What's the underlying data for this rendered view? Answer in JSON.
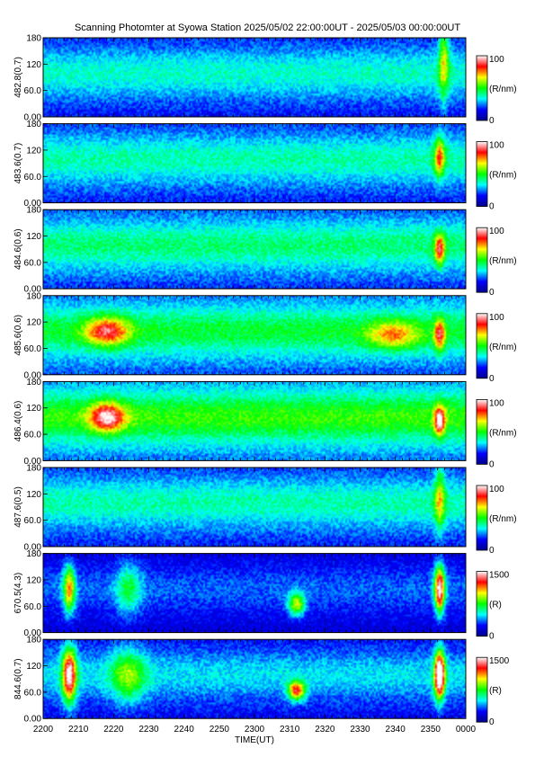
{
  "title": "Scanning Photomter at Syowa Station 2025/05/02 22:00:00UT - 2025/05/03 00:00:00UT",
  "chart_data": {
    "type": "heatmap",
    "xlabel": "TIME(UT)",
    "x_ticks": [
      "2200",
      "2210",
      "2220",
      "2230",
      "2240",
      "2250",
      "2300",
      "2310",
      "2320",
      "2330",
      "2340",
      "2350",
      "0000"
    ],
    "xlim": [
      "2200",
      "0000"
    ],
    "y_ticks": [
      "0.00",
      "60.0",
      "120",
      "180"
    ],
    "ylim": [
      0,
      180
    ],
    "colormap": [
      "#00008b",
      "#0000ff",
      "#00ffff",
      "#00ff00",
      "#ffff00",
      "#ff0000",
      "#ffffff"
    ],
    "panels": [
      {
        "ylabel": "482.8(0.7)",
        "cbar_max": "100",
        "cbar_min": "0",
        "cbar_unit": "(R/nm)",
        "level": 0.32,
        "features": [
          {
            "t": 0.95,
            "y": 0.72,
            "w": 0.012,
            "h": 0.5,
            "v": 0.35
          }
        ]
      },
      {
        "ylabel": "483.6(0.7)",
        "cbar_max": "100",
        "cbar_min": "0",
        "cbar_unit": "(R/nm)",
        "level": 0.34,
        "features": [
          {
            "t": 0.94,
            "y": 0.58,
            "w": 0.012,
            "h": 0.25,
            "v": 0.45
          }
        ]
      },
      {
        "ylabel": "484.6(0.6)",
        "cbar_max": "100",
        "cbar_min": "0",
        "cbar_unit": "(R/nm)",
        "level": 0.37,
        "features": [
          {
            "t": 0.94,
            "y": 0.5,
            "w": 0.012,
            "h": 0.2,
            "v": 0.5
          }
        ]
      },
      {
        "ylabel": "485.6(0.6)",
        "cbar_max": "100",
        "cbar_min": "0",
        "cbar_unit": "(R/nm)",
        "level": 0.41,
        "features": [
          {
            "t": 0.15,
            "y": 0.55,
            "w": 0.05,
            "h": 0.18,
            "v": 0.45
          },
          {
            "t": 0.83,
            "y": 0.5,
            "w": 0.06,
            "h": 0.18,
            "v": 0.3
          },
          {
            "t": 0.94,
            "y": 0.5,
            "w": 0.012,
            "h": 0.2,
            "v": 0.45
          }
        ]
      },
      {
        "ylabel": "486.4(0.6)",
        "cbar_max": "100",
        "cbar_min": "0",
        "cbar_unit": "(R/nm)",
        "level": 0.46,
        "features": [
          {
            "t": 0.15,
            "y": 0.55,
            "w": 0.04,
            "h": 0.18,
            "v": 0.5
          },
          {
            "t": 0.94,
            "y": 0.5,
            "w": 0.012,
            "h": 0.18,
            "v": 0.6
          }
        ]
      },
      {
        "ylabel": "487.6(0.5)",
        "cbar_max": "100",
        "cbar_min": "0",
        "cbar_unit": "(R/nm)",
        "level": 0.34,
        "features": [
          {
            "t": 0.94,
            "y": 0.6,
            "w": 0.012,
            "h": 0.4,
            "v": 0.35
          }
        ]
      },
      {
        "ylabel": "670.5(4.3)",
        "cbar_max": "1500",
        "cbar_min": "0",
        "cbar_unit": "(R)",
        "level": 0.2,
        "features": [
          {
            "t": 0.06,
            "y": 0.55,
            "w": 0.014,
            "h": 0.3,
            "v": 0.55
          },
          {
            "t": 0.2,
            "y": 0.55,
            "w": 0.03,
            "h": 0.35,
            "v": 0.25
          },
          {
            "t": 0.6,
            "y": 0.35,
            "w": 0.02,
            "h": 0.15,
            "v": 0.45
          },
          {
            "t": 0.94,
            "y": 0.55,
            "w": 0.012,
            "h": 0.3,
            "v": 0.8
          }
        ]
      },
      {
        "ylabel": "844.6(0.7)",
        "cbar_max": "1500",
        "cbar_min": "0",
        "cbar_unit": "(R)",
        "level": 0.28,
        "features": [
          {
            "t": 0.06,
            "y": 0.55,
            "w": 0.016,
            "h": 0.35,
            "v": 0.75
          },
          {
            "t": 0.2,
            "y": 0.55,
            "w": 0.04,
            "h": 0.35,
            "v": 0.3
          },
          {
            "t": 0.6,
            "y": 0.35,
            "w": 0.02,
            "h": 0.12,
            "v": 0.6
          },
          {
            "t": 0.94,
            "y": 0.55,
            "w": 0.012,
            "h": 0.3,
            "v": 0.95
          }
        ]
      }
    ]
  }
}
